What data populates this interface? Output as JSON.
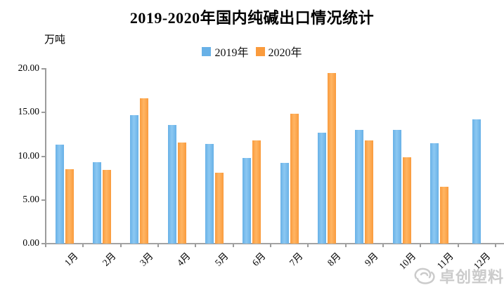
{
  "title": "2019-2020年国内纯碱出口情况统计",
  "unit_label": "万吨",
  "legend": [
    {
      "label": "2019年",
      "color": "#68B1E7",
      "highlight": "#8CC8F2"
    },
    {
      "label": "2020年",
      "color": "#FA9B3D",
      "highlight": "#FFB563"
    }
  ],
  "watermark": {
    "text": "卓创塑料",
    "icon": "sci-swirl-logo",
    "color": "#C6C6C6"
  },
  "colors": {
    "axis": "#9C9C9C",
    "text": "#000000",
    "background": "#FFFFFF"
  },
  "chart_data": {
    "type": "bar",
    "title": "2019-2020年国内纯碱出口情况统计",
    "xlabel": "",
    "ylabel": "万吨",
    "categories": [
      "1月",
      "2月",
      "3月",
      "4月",
      "5月",
      "6月",
      "7月",
      "8月",
      "9月",
      "10月",
      "11月",
      "12月"
    ],
    "series": [
      {
        "name": "2019年",
        "color": "#68B1E7",
        "values": [
          11.3,
          9.3,
          14.7,
          13.6,
          11.4,
          9.8,
          9.2,
          12.7,
          13.0,
          13.0,
          11.5,
          14.2
        ]
      },
      {
        "name": "2020年",
        "color": "#FA9B3D",
        "values": [
          8.5,
          8.4,
          16.6,
          11.6,
          8.1,
          11.8,
          14.9,
          19.5,
          11.8,
          9.9,
          6.5,
          null
        ]
      }
    ],
    "ylim": [
      0,
      20
    ],
    "yticks": [
      "0.00",
      "5.00",
      "10.00",
      "15.00",
      "20.00"
    ],
    "grid": false,
    "legend_position": "top-center"
  }
}
